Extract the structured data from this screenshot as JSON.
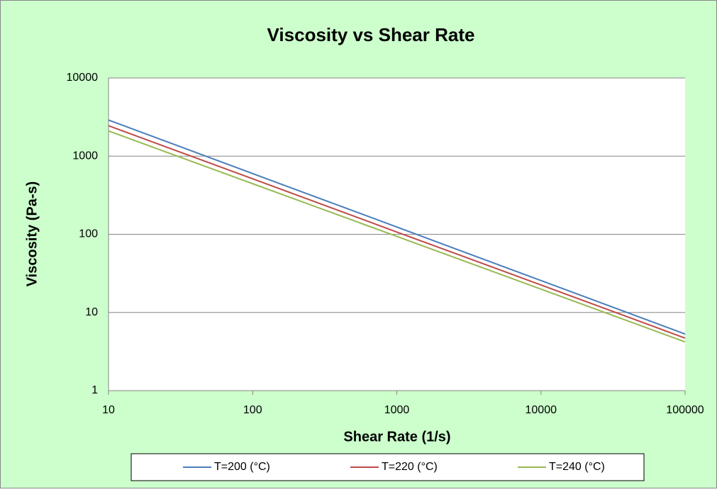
{
  "chart_data": {
    "type": "line",
    "title": "Viscosity vs Shear Rate",
    "x_label": "Shear Rate (1/s)",
    "y_label": "Viscosity  (Pa-s)",
    "x": [
      10,
      100,
      1000,
      10000,
      100000
    ],
    "series": [
      {
        "name": "T=200 (°C)",
        "color": "#4a7ebb",
        "values": [
          2900,
          598,
          124,
          25.6,
          5.3
        ]
      },
      {
        "name": "T=220 (°C)",
        "color": "#be4b48",
        "values": [
          2450,
          513,
          107,
          22.5,
          4.7
        ]
      },
      {
        "name": "T=240 (°C)",
        "color": "#98b954",
        "values": [
          2100,
          444,
          94,
          19.9,
          4.2
        ]
      }
    ],
    "xlim": [
      10,
      100000
    ],
    "xticks": [
      10,
      100,
      1000,
      10000,
      100000
    ],
    "ylim": [
      1,
      10000
    ],
    "yticks": [
      1,
      10,
      100,
      1000,
      10000
    ],
    "xlog": true,
    "ylog": true,
    "grid": true,
    "legend": "bottom"
  }
}
